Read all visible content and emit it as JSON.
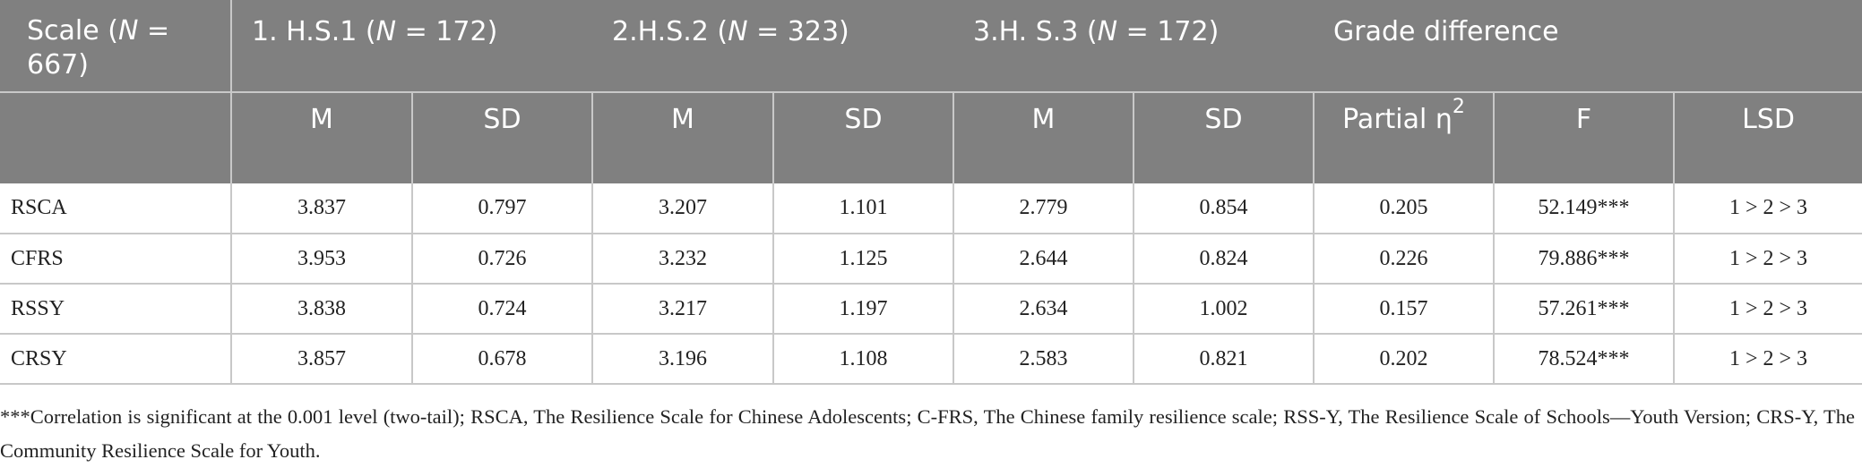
{
  "table": {
    "group_header": [
      [
        {
          "t": "Scale ("
        },
        {
          "t": "N",
          "i": true
        },
        {
          "t": " = 667)"
        }
      ],
      [
        {
          "t": "1. H.S.1 ("
        },
        {
          "t": "N",
          "i": true
        },
        {
          "t": " = 172)"
        }
      ],
      [
        {
          "t": "2.H.S.2 ("
        },
        {
          "t": "N",
          "i": true
        },
        {
          "t": " = 323)"
        }
      ],
      [
        {
          "t": "3.H. S.3 ("
        },
        {
          "t": "N",
          "i": true
        },
        {
          "t": " = 172)"
        }
      ],
      [
        {
          "t": "Grade difference"
        }
      ]
    ],
    "sub_header": [
      [
        {
          "t": "M"
        }
      ],
      [
        {
          "t": "SD"
        }
      ],
      [
        {
          "t": "M"
        }
      ],
      [
        {
          "t": "SD"
        }
      ],
      [
        {
          "t": "M"
        }
      ],
      [
        {
          "t": "SD"
        }
      ],
      [
        {
          "t": "Partial η"
        },
        {
          "t": "2",
          "sup": true
        }
      ],
      [
        {
          "t": "F"
        }
      ],
      [
        {
          "t": "LSD"
        }
      ]
    ],
    "rows": [
      [
        "RSCA",
        "3.837",
        "0.797",
        "3.207",
        "1.101",
        "2.779",
        "0.854",
        "0.205",
        "52.149***",
        "1 > 2 > 3"
      ],
      [
        "CFRS",
        "3.953",
        "0.726",
        "3.232",
        "1.125",
        "2.644",
        "0.824",
        "0.226",
        "79.886***",
        "1 > 2 > 3"
      ],
      [
        "RSSY",
        "3.838",
        "0.724",
        "3.217",
        "1.197",
        "2.634",
        "1.002",
        "0.157",
        "57.261***",
        "1 > 2 > 3"
      ],
      [
        "CRSY",
        "3.857",
        "0.678",
        "3.196",
        "1.108",
        "2.583",
        "0.821",
        "0.202",
        "78.524***",
        "1 > 2 > 3"
      ]
    ]
  },
  "footnote": "***Correlation is significant at the 0.001 level (two-tail); RSCA, The Resilience Scale for Chinese Adolescents; C-FRS, The Chinese family resilience scale; RSS-Y, The Resilience Scale of Schools—Youth Version; CRS-Y, The Community Resilience Scale for Youth."
}
